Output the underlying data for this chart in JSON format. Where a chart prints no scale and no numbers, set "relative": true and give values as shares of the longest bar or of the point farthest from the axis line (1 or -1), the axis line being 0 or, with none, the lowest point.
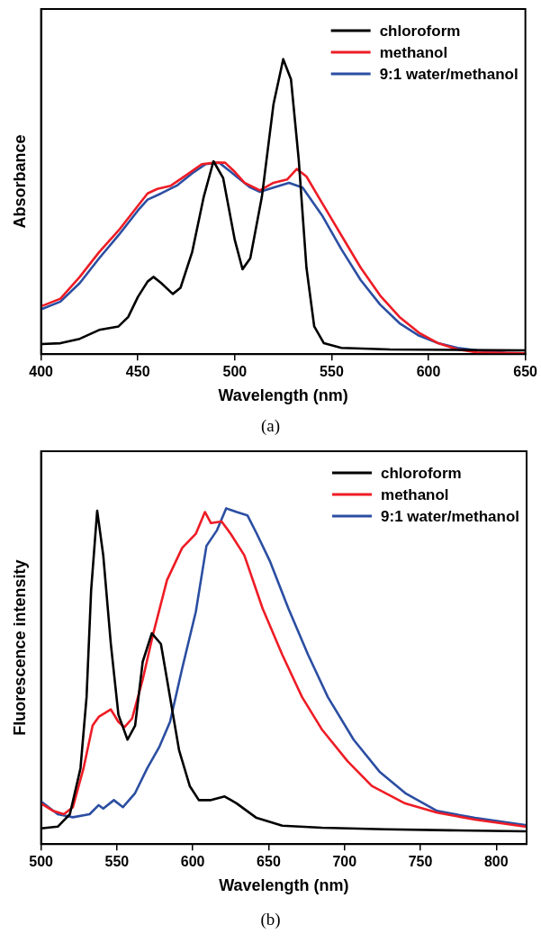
{
  "chart_data": [
    {
      "type": "line",
      "relative": true,
      "xlabel": "Wavelength (nm)",
      "ylabel": "Absorbance",
      "xlim": [
        400,
        650
      ],
      "xticks": [
        400,
        450,
        500,
        550,
        600,
        650
      ],
      "tick_labels": "x",
      "grid": false,
      "legend": "top right",
      "marker": "none",
      "line_style": "solid",
      "annotations": [
        "(a)"
      ],
      "series": [
        {
          "name": "chloroform",
          "color": "#000000",
          "x": [
            400,
            410,
            420,
            430,
            440,
            445,
            450,
            455,
            458,
            462,
            468,
            472,
            478,
            484,
            489,
            494,
            500,
            504,
            508,
            514,
            520,
            525,
            529,
            533,
            537,
            541,
            546,
            555,
            580,
            650
          ],
          "values": [
            0.034,
            0.037,
            0.052,
            0.082,
            0.094,
            0.126,
            0.194,
            0.246,
            0.262,
            0.241,
            0.204,
            0.225,
            0.346,
            0.534,
            0.654,
            0.597,
            0.387,
            0.288,
            0.325,
            0.534,
            0.848,
            1,
            0.932,
            0.66,
            0.293,
            0.094,
            0.037,
            0.021,
            0.016,
            0.013
          ]
        },
        {
          "name": "methanol",
          "color": "#ee1c25",
          "x": [
            400,
            410,
            420,
            430,
            440,
            450,
            455,
            460,
            467,
            475,
            483,
            490,
            495,
            500,
            505,
            513,
            520,
            527,
            532,
            537,
            545,
            555,
            565,
            575,
            585,
            595,
            605,
            615,
            625,
            640,
            650
          ],
          "values": [
            0.162,
            0.188,
            0.262,
            0.346,
            0.419,
            0.503,
            0.545,
            0.56,
            0.571,
            0.607,
            0.644,
            0.649,
            0.649,
            0.618,
            0.581,
            0.555,
            0.581,
            0.592,
            0.628,
            0.602,
            0.513,
            0.403,
            0.293,
            0.199,
            0.126,
            0.073,
            0.037,
            0.016,
            0.006,
            0.004,
            0.003
          ]
        },
        {
          "name": "9:1 water/methanol",
          "color": "#2b4ea2",
          "x": [
            400,
            410,
            420,
            430,
            440,
            450,
            455,
            462,
            470,
            478,
            485,
            492,
            500,
            508,
            513,
            520,
            528,
            535,
            545,
            555,
            565,
            575,
            585,
            595,
            605,
            615,
            625,
            640,
            650
          ],
          "values": [
            0.152,
            0.178,
            0.241,
            0.325,
            0.403,
            0.487,
            0.524,
            0.545,
            0.571,
            0.613,
            0.644,
            0.649,
            0.607,
            0.565,
            0.55,
            0.565,
            0.581,
            0.565,
            0.471,
            0.356,
            0.251,
            0.168,
            0.105,
            0.063,
            0.037,
            0.021,
            0.013,
            0.004,
            0.003
          ]
        }
      ]
    },
    {
      "type": "line",
      "relative": true,
      "xlabel": "Wavelength (nm)",
      "ylabel": "Fluorescence intensity",
      "xlim": [
        500,
        820
      ],
      "xticks": [
        500,
        550,
        600,
        650,
        700,
        750,
        800
      ],
      "tick_labels": "x",
      "grid": false,
      "legend": "top right",
      "marker": "none",
      "line_style": "solid",
      "annotations": [
        "(b)"
      ],
      "series": [
        {
          "name": "chloroform",
          "color": "#000000",
          "x": [
            500,
            511,
            519,
            526,
            530,
            533,
            537,
            541,
            546,
            551,
            557,
            562,
            567,
            573,
            579,
            585,
            591,
            598,
            604,
            612,
            621,
            629,
            642,
            659,
            685,
            727,
            769,
            819
          ],
          "values": [
            0.047,
            0.052,
            0.089,
            0.226,
            0.438,
            0.755,
            0.993,
            0.86,
            0.596,
            0.385,
            0.311,
            0.353,
            0.543,
            0.628,
            0.596,
            0.438,
            0.279,
            0.173,
            0.131,
            0.131,
            0.142,
            0.121,
            0.078,
            0.055,
            0.049,
            0.044,
            0.041,
            0.038
          ]
        },
        {
          "name": "methanol",
          "color": "#ee1c25",
          "x": [
            500,
            508,
            515,
            521,
            528,
            534,
            538,
            546,
            551,
            555,
            560,
            567,
            574,
            583,
            593,
            602,
            608,
            612,
            619,
            625,
            634,
            646,
            659,
            672,
            685,
            702,
            718,
            740,
            761,
            786,
            819
          ],
          "values": [
            0.121,
            0.099,
            0.089,
            0.11,
            0.226,
            0.353,
            0.379,
            0.401,
            0.364,
            0.348,
            0.374,
            0.49,
            0.628,
            0.786,
            0.882,
            0.924,
            0.989,
            0.956,
            0.961,
            0.924,
            0.86,
            0.702,
            0.564,
            0.438,
            0.342,
            0.247,
            0.173,
            0.121,
            0.094,
            0.073,
            0.052
          ]
        },
        {
          "name": "9:1 water/methanol",
          "color": "#2b4ea2",
          "x": [
            500,
            511,
            521,
            532,
            538,
            541,
            548,
            554,
            562,
            570,
            578,
            585,
            593,
            602,
            609,
            616,
            622,
            629,
            636,
            642,
            651,
            663,
            676,
            689,
            706,
            723,
            740,
            761,
            786,
            819
          ],
          "values": [
            0.127,
            0.089,
            0.08,
            0.089,
            0.116,
            0.106,
            0.131,
            0.11,
            0.152,
            0.226,
            0.29,
            0.364,
            0.523,
            0.692,
            0.888,
            0.935,
            1,
            0.989,
            0.979,
            0.926,
            0.841,
            0.702,
            0.564,
            0.438,
            0.311,
            0.216,
            0.152,
            0.099,
            0.078,
            0.057
          ]
        }
      ]
    }
  ]
}
